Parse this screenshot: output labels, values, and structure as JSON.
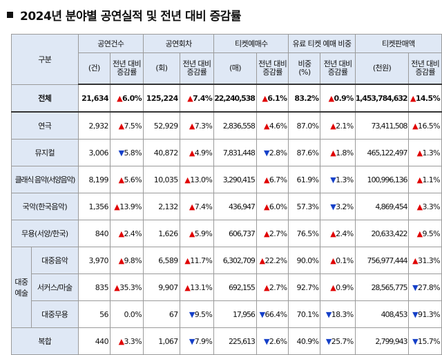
{
  "title": "2024년 분야별 공연실적 및 전년 대비 증감률",
  "header": {
    "category": "구분",
    "groups": [
      "공연건수",
      "공연회차",
      "티켓예매수",
      "유료 티켓 예매 비중",
      "티켓판매액"
    ],
    "units": [
      "(건)",
      "(회)",
      "(매)",
      "비중\n(%)",
      "(천원)"
    ],
    "change_label": "전년 대비\n증감률"
  },
  "rows": [
    {
      "label": "전체",
      "total": true,
      "vals": [
        "21,634",
        "125,224",
        "22,240,538",
        "83.2%",
        "1,453,784,632"
      ],
      "chg": [
        [
          "up",
          "6.0%"
        ],
        [
          "up",
          "7.4%"
        ],
        [
          "up",
          "6.1%"
        ],
        [
          "up",
          "0.9%"
        ],
        [
          "up",
          "14.5%"
        ]
      ]
    },
    {
      "label": "연극",
      "vals": [
        "2,932",
        "52,929",
        "2,836,558",
        "87.0%",
        "73,411,508"
      ],
      "chg": [
        [
          "up",
          "7.5%"
        ],
        [
          "up",
          "7.3%"
        ],
        [
          "up",
          "4.6%"
        ],
        [
          "up",
          "2.1%"
        ],
        [
          "up",
          "16.5%"
        ]
      ]
    },
    {
      "label": "뮤지컬",
      "vals": [
        "3,006",
        "40,872",
        "7,831,448",
        "87.6%",
        "465,122,497"
      ],
      "chg": [
        [
          "down",
          "5.8%"
        ],
        [
          "up",
          "4.9%"
        ],
        [
          "down",
          "2.8%"
        ],
        [
          "up",
          "1.8%"
        ],
        [
          "up",
          "1.3%"
        ]
      ]
    },
    {
      "label": "클래식 음악(서양음악)",
      "vals": [
        "8,199",
        "10,035",
        "3,290,415",
        "61.9%",
        "100,996,136"
      ],
      "chg": [
        [
          "up",
          "5.6%"
        ],
        [
          "up",
          "13.0%"
        ],
        [
          "up",
          "6.7%"
        ],
        [
          "down",
          "1.3%"
        ],
        [
          "up",
          "1.1%"
        ]
      ]
    },
    {
      "label": "국악(한국음악)",
      "vals": [
        "1,356",
        "2,132",
        "436,947",
        "57.3%",
        "4,869,454"
      ],
      "chg": [
        [
          "up",
          "13.9%"
        ],
        [
          "up",
          "7.4%"
        ],
        [
          "up",
          "6.0%"
        ],
        [
          "down",
          "3.2%"
        ],
        [
          "up",
          "3.3%"
        ]
      ]
    },
    {
      "label": "무용(서양/한국)",
      "vals": [
        "840",
        "1,626",
        "606,737",
        "76.5%",
        "20,633,422"
      ],
      "chg": [
        [
          "up",
          "2.4%"
        ],
        [
          "up",
          "5.9%"
        ],
        [
          "up",
          "2.7%"
        ],
        [
          "up",
          "2.4%"
        ],
        [
          "up",
          "9.5%"
        ]
      ]
    },
    {
      "group": "대중\n예술",
      "label": "대중음악",
      "vals": [
        "3,970",
        "6,589",
        "6,302,709",
        "90.0%",
        "756,977,444"
      ],
      "chg": [
        [
          "up",
          "9.8%"
        ],
        [
          "up",
          "11.7%"
        ],
        [
          "up",
          "22.2%"
        ],
        [
          "up",
          "0.1%"
        ],
        [
          "up",
          "31.3%"
        ]
      ]
    },
    {
      "label": "서커스/마술",
      "vals": [
        "835",
        "9,907",
        "692,155",
        "92.7%",
        "28,565,775"
      ],
      "chg": [
        [
          "up",
          "35.3%"
        ],
        [
          "up",
          "13.1%"
        ],
        [
          "up",
          "2.7%"
        ],
        [
          "up",
          "0.9%"
        ],
        [
          "down",
          "27.8%"
        ]
      ]
    },
    {
      "label": "대중무용",
      "vals": [
        "56",
        "67",
        "17,956",
        "70.1%",
        "408,453"
      ],
      "chg": [
        [
          "none",
          "0.0%"
        ],
        [
          "down",
          "9.5%"
        ],
        [
          "down",
          "66.4%"
        ],
        [
          "down",
          "18.3%"
        ],
        [
          "down",
          "91.3%"
        ]
      ]
    },
    {
      "label": "복합",
      "vals": [
        "440",
        "1,067",
        "225,613",
        "40.9%",
        "2,799,943"
      ],
      "chg": [
        [
          "up",
          "3.3%"
        ],
        [
          "down",
          "7.9%"
        ],
        [
          "down",
          "2.6%"
        ],
        [
          "down",
          "25.7%"
        ],
        [
          "down",
          "15.7%"
        ]
      ]
    }
  ],
  "colors": {
    "up": "#e00000",
    "down": "#1540c8",
    "header_bg": "#dfe8f5"
  }
}
